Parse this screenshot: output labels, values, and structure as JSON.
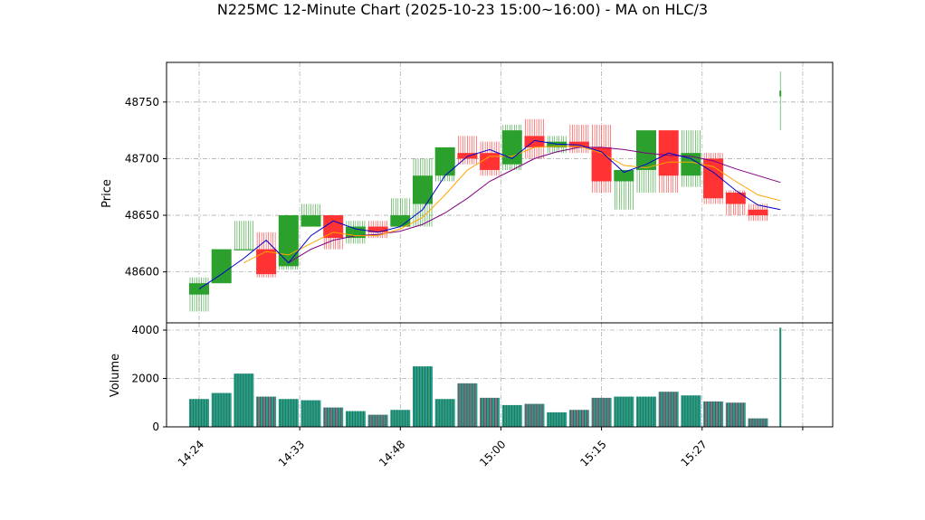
{
  "chart_data": {
    "type": "candlestick",
    "title": "N225MC 12-Minute Chart (2025-10-23 15:00~16:00) - MA on HLC/3",
    "price_ylabel": "Price",
    "volume_ylabel": "Volume",
    "grid": true,
    "price_ylim": [
      48555,
      48785
    ],
    "volume_ylim": [
      0,
      4300
    ],
    "price_yticks": [
      48600,
      48650,
      48700,
      48750
    ],
    "volume_yticks": [
      0,
      2000,
      4000
    ],
    "x_tick_labels": [
      "14:24",
      "14:33",
      "14:48",
      "15:00",
      "15:15",
      "15:27",
      ""
    ],
    "x_tick_at_bar": [
      0,
      4.5,
      9,
      13.5,
      18,
      22.5,
      27
    ],
    "colors": {
      "up": "#2ca02c",
      "down": "#ff3333",
      "ma_fast": "#0000cc",
      "ma_mid": "#ffa500",
      "ma_slow": "#800080"
    },
    "bars": [
      {
        "o": 48580,
        "h": 48595,
        "l": 48565,
        "c": 48590,
        "v": 1150
      },
      {
        "o": 48590,
        "h": 48620,
        "l": 48590,
        "c": 48620,
        "v": 1400
      },
      {
        "o": 48620,
        "h": 48645,
        "l": 48620,
        "c": 48620,
        "v": 2200
      },
      {
        "o": 48620,
        "h": 48635,
        "l": 48595,
        "c": 48598,
        "v": 1250
      },
      {
        "o": 48605,
        "h": 48650,
        "l": 48602,
        "c": 48650,
        "v": 1150
      },
      {
        "o": 48640,
        "h": 48660,
        "l": 48640,
        "c": 48650,
        "v": 1100
      },
      {
        "o": 48650,
        "h": 48650,
        "l": 48620,
        "c": 48630,
        "v": 800
      },
      {
        "o": 48630,
        "h": 48645,
        "l": 48625,
        "c": 48640,
        "v": 650
      },
      {
        "o": 48640,
        "h": 48645,
        "l": 48630,
        "c": 48635,
        "v": 500
      },
      {
        "o": 48640,
        "h": 48665,
        "l": 48640,
        "c": 48650,
        "v": 700
      },
      {
        "o": 48660,
        "h": 48700,
        "l": 48640,
        "c": 48685,
        "v": 2500
      },
      {
        "o": 48685,
        "h": 48710,
        "l": 48680,
        "c": 48710,
        "v": 1150
      },
      {
        "o": 48705,
        "h": 48720,
        "l": 48695,
        "c": 48700,
        "v": 1800
      },
      {
        "o": 48705,
        "h": 48715,
        "l": 48685,
        "c": 48690,
        "v": 1200
      },
      {
        "o": 48695,
        "h": 48730,
        "l": 48690,
        "c": 48725,
        "v": 900
      },
      {
        "o": 48720,
        "h": 48735,
        "l": 48700,
        "c": 48710,
        "v": 950
      },
      {
        "o": 48710,
        "h": 48720,
        "l": 48705,
        "c": 48715,
        "v": 600
      },
      {
        "o": 48715,
        "h": 48730,
        "l": 48705,
        "c": 48710,
        "v": 700
      },
      {
        "o": 48710,
        "h": 48730,
        "l": 48670,
        "c": 48680,
        "v": 1200
      },
      {
        "o": 48680,
        "h": 48690,
        "l": 48655,
        "c": 48690,
        "v": 1250
      },
      {
        "o": 48690,
        "h": 48725,
        "l": 48670,
        "c": 48725,
        "v": 1250
      },
      {
        "o": 48725,
        "h": 48725,
        "l": 48670,
        "c": 48685,
        "v": 1450
      },
      {
        "o": 48685,
        "h": 48725,
        "l": 48675,
        "c": 48705,
        "v": 1300
      },
      {
        "o": 48700,
        "h": 48705,
        "l": 48660,
        "c": 48665,
        "v": 1050
      },
      {
        "o": 48670,
        "h": 48672,
        "l": 48650,
        "c": 48660,
        "v": 1000
      },
      {
        "o": 48655,
        "h": 48660,
        "l": 48645,
        "c": 48650,
        "v": 350
      },
      {
        "o": 48755,
        "h": 48777,
        "l": 48725,
        "c": 48760,
        "v": 4100
      }
    ],
    "ma_fast": [
      48585,
      48598,
      48612,
      48628,
      48608,
      48632,
      48645,
      48638,
      48635,
      48640,
      48655,
      48685,
      48702,
      48708,
      48700,
      48716,
      48713,
      48712,
      48706,
      48688,
      48695,
      48705,
      48700,
      48688,
      48672,
      48659,
      48655
    ],
    "ma_mid": [
      null,
      null,
      48608,
      48618,
      48615,
      48625,
      48635,
      48632,
      48632,
      48638,
      48648,
      48668,
      48690,
      48702,
      48702,
      48710,
      48711,
      48711,
      48705,
      48694,
      48692,
      48697,
      48697,
      48693,
      48680,
      48668,
      48663
    ],
    "ma_slow": [
      null,
      null,
      null,
      null,
      48608,
      48620,
      48628,
      48632,
      48633,
      48636,
      48642,
      48652,
      48665,
      48680,
      48690,
      48700,
      48706,
      48710,
      48710,
      48708,
      48705,
      48703,
      48702,
      48698,
      48691,
      48685,
      48679
    ]
  }
}
